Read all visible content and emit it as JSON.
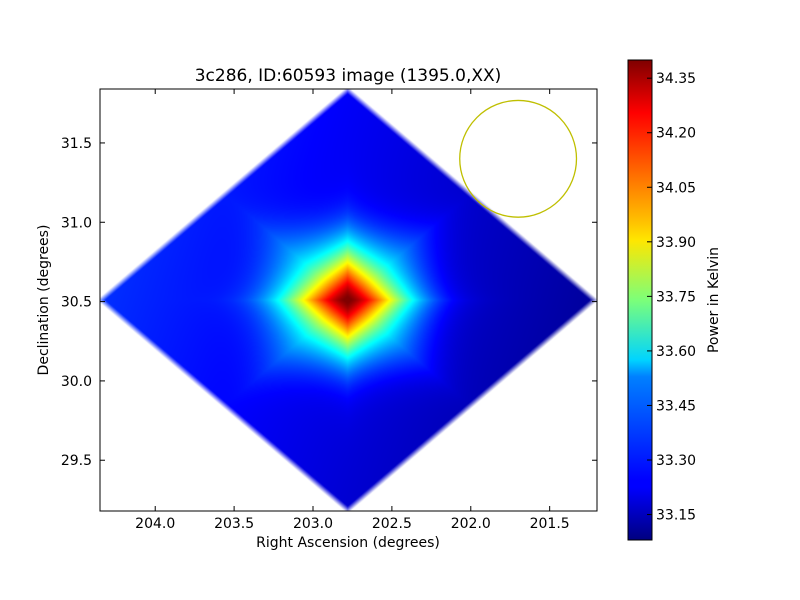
{
  "chart_data": {
    "type": "heatmap",
    "title": "3c286, ID:60593 image (1395.0,XX)",
    "xlabel": "Right Ascension (degrees)",
    "ylabel": "Declination (degrees)",
    "xlim": [
      204.35,
      201.2
    ],
    "ylim": [
      29.18,
      31.84
    ],
    "x_inverted": true,
    "xticks": [
      204.0,
      203.5,
      203.0,
      202.5,
      202.0,
      201.5
    ],
    "xtick_labels": [
      "204.0",
      "203.5",
      "203.0",
      "202.5",
      "202.0",
      "201.5"
    ],
    "yticks": [
      29.5,
      30.0,
      30.5,
      31.0,
      31.5
    ],
    "ytick_labels": [
      "29.5",
      "30.0",
      "30.5",
      "31.0",
      "31.5"
    ],
    "map_extent": {
      "ra_center": 202.78,
      "dec_center": 30.51,
      "ra_halfwidth": 1.56,
      "dec_halfwidth": 1.32
    },
    "peak": {
      "ra": 202.78,
      "dec": 30.51,
      "value": 34.4
    },
    "background_min": 33.08,
    "beam": {
      "ra_center": 201.7,
      "dec_center": 31.4,
      "radius_deg": 0.37,
      "color": "#bfbf00"
    },
    "colorbar": {
      "label": "Power in Kelvin",
      "range": [
        33.08,
        34.4
      ],
      "ticks": [
        33.15,
        33.3,
        33.45,
        33.6,
        33.75,
        33.9,
        34.05,
        34.2,
        34.35
      ],
      "tick_labels": [
        "33.15",
        "33.30",
        "33.45",
        "33.60",
        "33.75",
        "33.90",
        "34.05",
        "34.20",
        "34.35"
      ],
      "colormap": "jet"
    },
    "grid": false
  }
}
